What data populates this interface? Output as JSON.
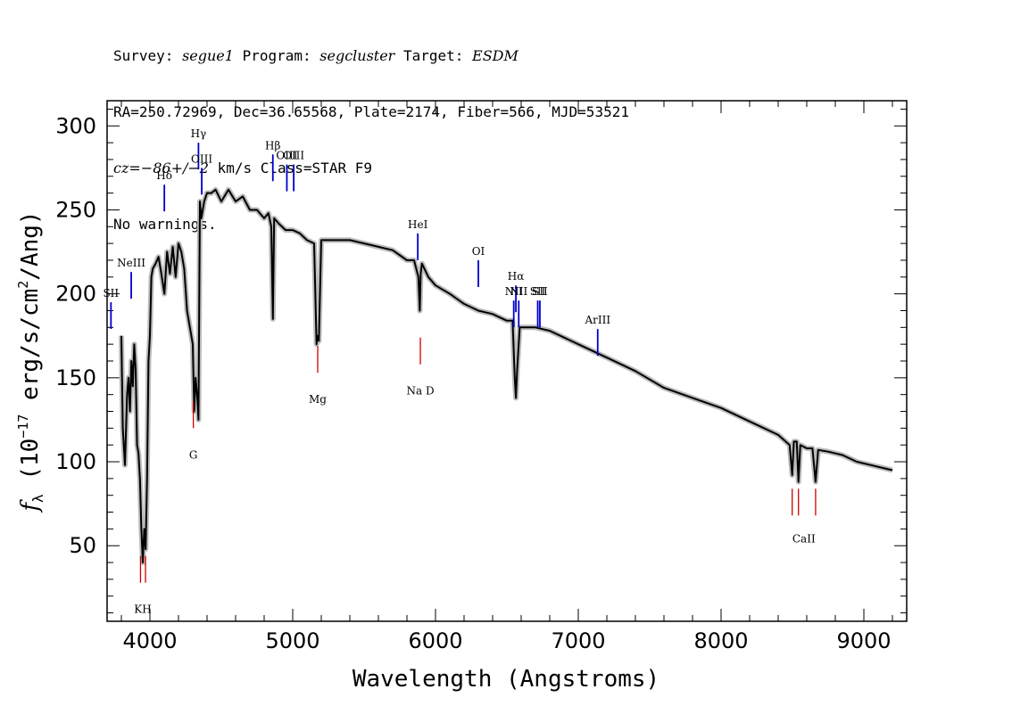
{
  "header": {
    "line1_a": "Survey: ",
    "survey": "segue1",
    "line1_b": " Program: ",
    "program": "segcluster",
    "line1_c": " Target: ",
    "target": "ESDM",
    "line2": "RA=250.72969, Dec=36.65568, Plate=2174, Fiber=566, MJD=53521",
    "line3_a": "cz=",
    "cz_value": "−86+/−2",
    "line3_b": " km/s Class=STAR F9",
    "line4": "No warnings."
  },
  "chart_data": {
    "type": "line",
    "xlabel": "Wavelength (Angstroms)",
    "ylabel": "fλ (10⁻¹⁷ erg/s/cm²/Ang)",
    "xlim": [
      3700,
      9300
    ],
    "ylim": [
      5,
      315
    ],
    "x_ticks": [
      4000,
      5000,
      6000,
      7000,
      8000,
      9000
    ],
    "y_ticks": [
      50,
      100,
      150,
      200,
      250,
      300
    ],
    "colors": {
      "spectrum": "#000000",
      "error": "#bbbbbb",
      "emission": "#0000cc",
      "absorption": "#cc0000"
    },
    "spectrum": {
      "x": [
        3800,
        3810,
        3825,
        3840,
        3850,
        3860,
        3870,
        3880,
        3890,
        3900,
        3910,
        3920,
        3930,
        3940,
        3950,
        3960,
        3970,
        3980,
        3990,
        4000,
        4010,
        4020,
        4040,
        4060,
        4080,
        4101,
        4120,
        4140,
        4160,
        4180,
        4200,
        4220,
        4240,
        4260,
        4280,
        4300,
        4310,
        4320,
        4330,
        4340,
        4350,
        4360,
        4380,
        4400,
        4430,
        4460,
        4500,
        4550,
        4600,
        4650,
        4700,
        4750,
        4800,
        4830,
        4850,
        4861,
        4870,
        4900,
        4950,
        5000,
        5050,
        5100,
        5150,
        5167,
        5172,
        5183,
        5200,
        5250,
        5300,
        5400,
        5500,
        5600,
        5700,
        5800,
        5850,
        5880,
        5890,
        5896,
        5905,
        5950,
        6000,
        6100,
        6200,
        6300,
        6400,
        6500,
        6540,
        6555,
        6563,
        6572,
        6590,
        6700,
        6800,
        7000,
        7200,
        7400,
        7600,
        7800,
        8000,
        8200,
        8400,
        8480,
        8498,
        8510,
        8530,
        8542,
        8555,
        8600,
        8640,
        8662,
        8680,
        8750,
        8850,
        8950,
        9050,
        9150,
        9200
      ],
      "y": [
        175,
        120,
        98,
        140,
        150,
        130,
        160,
        145,
        170,
        155,
        110,
        105,
        90,
        60,
        40,
        60,
        48,
        90,
        160,
        175,
        210,
        215,
        218,
        222,
        212,
        200,
        225,
        212,
        228,
        210,
        230,
        225,
        215,
        190,
        180,
        170,
        130,
        150,
        140,
        125,
        255,
        245,
        255,
        260,
        260,
        262,
        255,
        262,
        255,
        258,
        250,
        250,
        245,
        248,
        240,
        185,
        245,
        242,
        238,
        238,
        236,
        232,
        230,
        170,
        175,
        172,
        232,
        232,
        232,
        232,
        230,
        228,
        226,
        220,
        220,
        210,
        190,
        212,
        218,
        210,
        205,
        200,
        194,
        190,
        188,
        184,
        184,
        150,
        138,
        155,
        180,
        180,
        178,
        170,
        162,
        154,
        144,
        138,
        132,
        124,
        116,
        110,
        92,
        112,
        112,
        88,
        110,
        108,
        108,
        88,
        107,
        106,
        104,
        100,
        98,
        96,
        95
      ]
    },
    "emission_lines": [
      {
        "label": "SII",
        "x": 3727,
        "y": 195
      },
      {
        "label": "NeIII",
        "x": 3869,
        "y": 213
      },
      {
        "label": "Hδ",
        "x": 4101,
        "y": 265
      },
      {
        "label": "Hγ",
        "x": 4340,
        "y": 290
      },
      {
        "label": "OIII",
        "x": 4363,
        "y": 275
      },
      {
        "label": "Hβ",
        "x": 4861,
        "y": 283
      },
      {
        "label": "OIII",
        "x": 4959,
        "y": 277
      },
      {
        "label": "OIII",
        "x": 5007,
        "y": 277
      },
      {
        "label": "HeI",
        "x": 5876,
        "y": 236
      },
      {
        "label": "OI",
        "x": 6300,
        "y": 220
      },
      {
        "label": "NII",
        "x": 6548,
        "y": 196
      },
      {
        "label": "Hα",
        "x": 6563,
        "y": 205
      },
      {
        "label": "NII",
        "x": 6583,
        "y": 196
      },
      {
        "label": "SII",
        "x": 6716,
        "y": 196
      },
      {
        "label": "SII",
        "x": 6731,
        "y": 196
      },
      {
        "label": "ArIII",
        "x": 7136,
        "y": 179
      }
    ],
    "absorption_lines": [
      {
        "label": "K",
        "x": 3934,
        "y": 28
      },
      {
        "label": "H",
        "x": 3969,
        "y": 28
      },
      {
        "label": "G",
        "x": 4304,
        "y": 120
      },
      {
        "label": "Mg",
        "x": 5175,
        "y": 153
      },
      {
        "label": "Na D",
        "x": 5894,
        "y": 158
      },
      {
        "label": "CaII",
        "x": 8498,
        "y": 68
      },
      {
        "label": "CaII",
        "x": 8542,
        "y": 68
      },
      {
        "label": "CaII",
        "x": 8662,
        "y": 68
      }
    ],
    "absorption_group_labels": [
      {
        "label": "KH",
        "x": 3950,
        "y": 10
      },
      {
        "label": "G",
        "x": 4304,
        "y": 102
      },
      {
        "label": "Mg",
        "x": 5175,
        "y": 135
      },
      {
        "label": "Na D",
        "x": 5894,
        "y": 140
      },
      {
        "label": "CaII",
        "x": 8580,
        "y": 52
      }
    ]
  }
}
